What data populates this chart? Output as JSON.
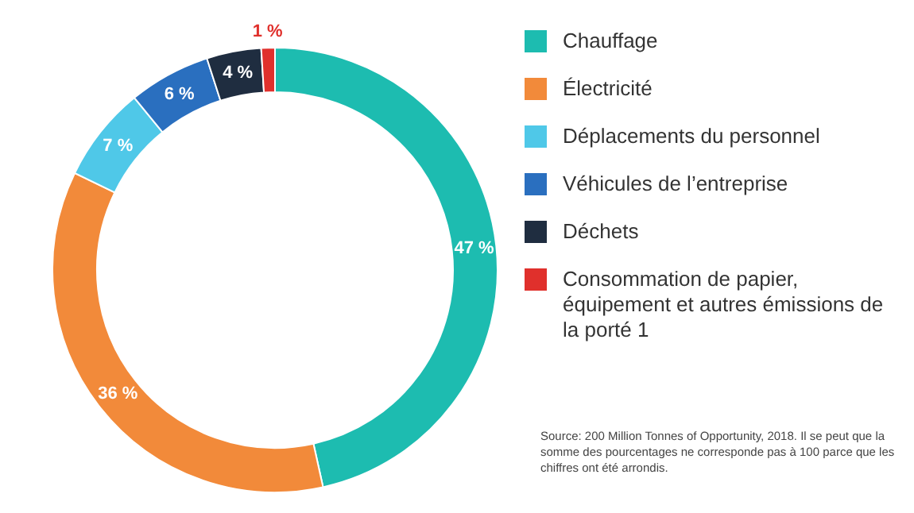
{
  "chart_data": {
    "type": "donut",
    "categories": [
      "Chauffage",
      "Électricité",
      "Déplacements du personnel",
      "Véhicules de l’entreprise",
      "Déchets",
      "Consommation de papier, équipement et autres émissions de la porté 1"
    ],
    "values": [
      47,
      36,
      7,
      6,
      4,
      1
    ],
    "value_labels": [
      "47 %",
      "36 %",
      "7 %",
      "6 %",
      "4 %",
      "1 %"
    ],
    "colors": [
      "#1dbcb0",
      "#f28a3a",
      "#4fc8e8",
      "#2a6fbf",
      "#1f2d40",
      "#e0302c"
    ],
    "legend": "right",
    "annotations": [
      "Source: 200 Million Tonnes of Opportunity, 2018. Il se peut que la somme des pourcentages ne corresponde pas à 100 parce que les chiffres ont été arrondis."
    ]
  }
}
